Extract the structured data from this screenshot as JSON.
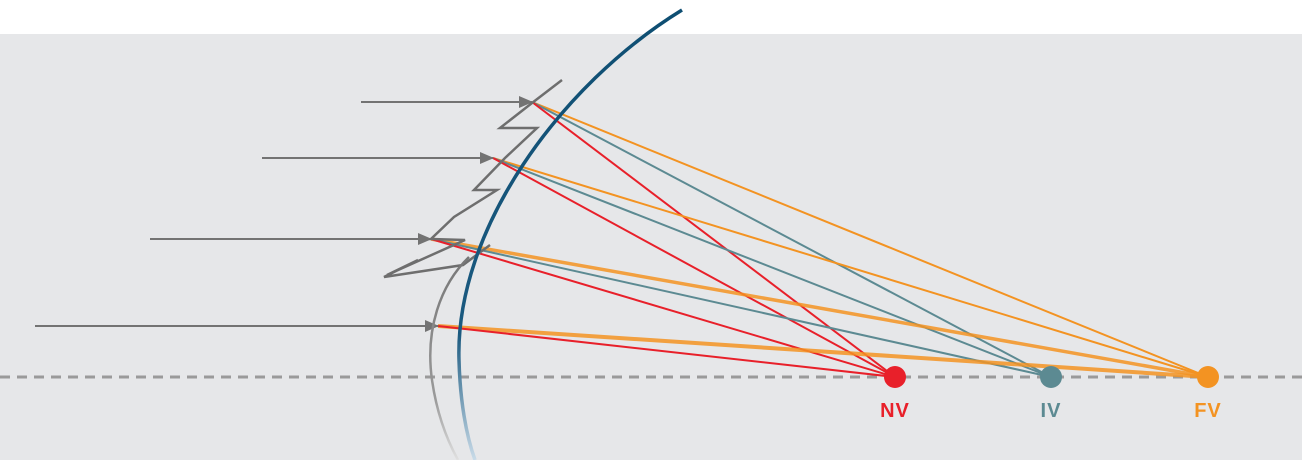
{
  "diagram": {
    "colors": {
      "background_panel": "#e6e7e9",
      "background_page": "#ffffff",
      "incoming_ray": "#737373",
      "lens_profile": "#6e6e6e",
      "cornea_arc": "#0e4e72",
      "back_arc": "#8c8c8c",
      "optical_axis": "#9a9a9a",
      "near": "#e8202a",
      "intermediate": "#5c8a92",
      "far": "#f39322"
    },
    "focal_points": [
      {
        "id": "near",
        "label": "NV",
        "color": "#e8202a"
      },
      {
        "id": "intermediate",
        "label": "IV",
        "color": "#5c8a92"
      },
      {
        "id": "far",
        "label": "FV",
        "color": "#f39322"
      }
    ]
  }
}
